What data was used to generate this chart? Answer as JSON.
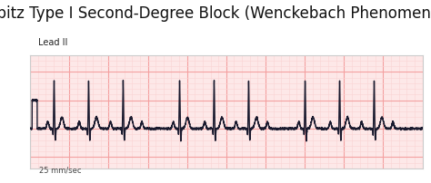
{
  "title": "Mobitz Type I Second-Degree Block (Wenckebach Phenomenon)",
  "title_fontsize": 12,
  "lead_label": "Lead II",
  "speed_label": "25 mm/sec",
  "bg_color": "#ffffff",
  "grid_color_major": "#f4a0a0",
  "grid_color_minor": "#fad4d4",
  "ecg_color": "#1a1a2e",
  "border_color": "#cccccc",
  "ecg_linewidth": 1.0,
  "fig_width": 4.74,
  "fig_height": 2.02,
  "dpi": 100
}
